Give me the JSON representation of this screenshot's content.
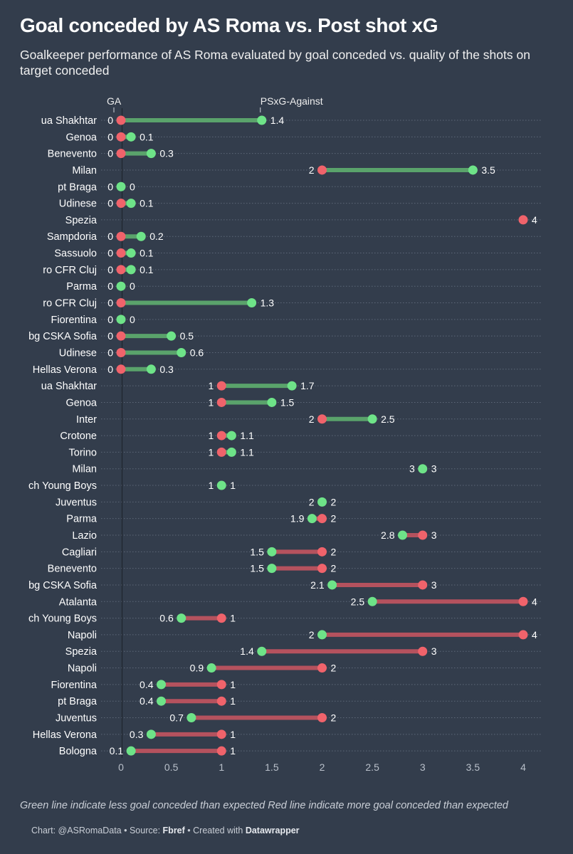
{
  "title": "Goal conceded by AS Roma vs. Post shot xG",
  "subtitle": "Goalkeeper performance of AS Roma evaluated by goal conceded vs. quality of the shots on target conceded",
  "notes": "Green line indicate less goal conceded than expected Red line indicate more goal conceded than expected",
  "footer": {
    "chart_credit": "Chart: @ASRomaData",
    "source_label": "Source:",
    "source": "Fbref",
    "created_label": "Created with",
    "tool": "Datawrapper"
  },
  "colors": {
    "background": "#333d4c",
    "ga_dot": "#f0636b",
    "xg_dot": "#6ee388",
    "green_line": "#5aa36b",
    "red_line": "#b5525e"
  },
  "chart_data": {
    "type": "dot-range",
    "legend": {
      "ga": "GA",
      "xg": "PSxG-Against"
    },
    "x_ticks": [
      0,
      0.5,
      1,
      1.5,
      2,
      2.5,
      3,
      3.5,
      4
    ],
    "xlim": [
      0,
      4
    ],
    "grid": true,
    "rows": [
      {
        "team": "ua Shakhtar",
        "ga": 0,
        "xg": 1.4
      },
      {
        "team": "Genoa",
        "ga": 0,
        "xg": 0.1
      },
      {
        "team": "Benevento",
        "ga": 0,
        "xg": 0.3
      },
      {
        "team": "Milan",
        "ga": 2,
        "xg": 3.5
      },
      {
        "team": "pt Braga",
        "ga": 0,
        "xg": 0
      },
      {
        "team": "Udinese",
        "ga": 0,
        "xg": 0.1
      },
      {
        "team": "Spezia",
        "ga": 4,
        "xg": 4
      },
      {
        "team": "Sampdoria",
        "ga": 0,
        "xg": 0.2
      },
      {
        "team": "Sassuolo",
        "ga": 0,
        "xg": 0.1
      },
      {
        "team": "ro CFR Cluj",
        "ga": 0,
        "xg": 0.1
      },
      {
        "team": "Parma",
        "ga": 0,
        "xg": 0
      },
      {
        "team": "ro CFR Cluj",
        "ga": 0,
        "xg": 1.3
      },
      {
        "team": "Fiorentina",
        "ga": 0,
        "xg": 0
      },
      {
        "team": "bg CSKA Sofia",
        "ga": 0,
        "xg": 0.5
      },
      {
        "team": "Udinese",
        "ga": 0,
        "xg": 0.6
      },
      {
        "team": "Hellas Verona",
        "ga": 0,
        "xg": 0.3
      },
      {
        "team": "ua Shakhtar",
        "ga": 1,
        "xg": 1.7
      },
      {
        "team": "Genoa",
        "ga": 1,
        "xg": 1.5
      },
      {
        "team": "Inter",
        "ga": 2,
        "xg": 2.5
      },
      {
        "team": "Crotone",
        "ga": 1,
        "xg": 1.1
      },
      {
        "team": "Torino",
        "ga": 1,
        "xg": 1.1
      },
      {
        "team": "Milan",
        "ga": 3,
        "xg": 3
      },
      {
        "team": "ch Young Boys",
        "ga": 1,
        "xg": 1
      },
      {
        "team": "Juventus",
        "ga": 2,
        "xg": 2
      },
      {
        "team": "Parma",
        "ga": 2,
        "xg": 1.9
      },
      {
        "team": "Lazio",
        "ga": 3,
        "xg": 2.8
      },
      {
        "team": "Cagliari",
        "ga": 2,
        "xg": 1.5
      },
      {
        "team": "Benevento",
        "ga": 2,
        "xg": 1.5
      },
      {
        "team": "bg CSKA Sofia",
        "ga": 3,
        "xg": 2.1
      },
      {
        "team": "Atalanta",
        "ga": 4,
        "xg": 2.5
      },
      {
        "team": "ch Young Boys",
        "ga": 1,
        "xg": 0.6
      },
      {
        "team": "Napoli",
        "ga": 4,
        "xg": 2
      },
      {
        "team": "Spezia",
        "ga": 3,
        "xg": 1.4
      },
      {
        "team": "Napoli",
        "ga": 2,
        "xg": 0.9
      },
      {
        "team": "Fiorentina",
        "ga": 1,
        "xg": 0.4
      },
      {
        "team": "pt Braga",
        "ga": 1,
        "xg": 0.4
      },
      {
        "team": "Juventus",
        "ga": 2,
        "xg": 0.7
      },
      {
        "team": "Hellas Verona",
        "ga": 1,
        "xg": 0.3
      },
      {
        "team": "Bologna",
        "ga": 1,
        "xg": 0.1
      }
    ]
  }
}
